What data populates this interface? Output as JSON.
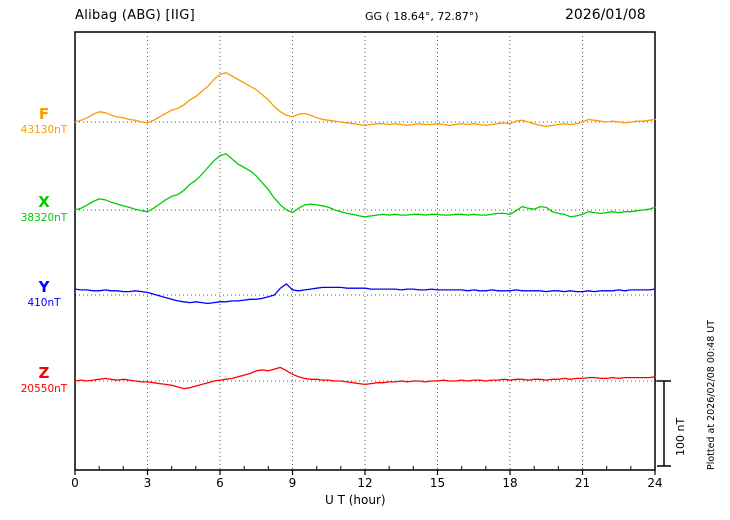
{
  "header": {
    "station": "Alibag (ABG)  [IIG]",
    "gg": "GG ( 18.64°, 72.87°)",
    "date": "2026/01/08"
  },
  "axis": {
    "xlabel": "U T (hour)",
    "x_ticks": [
      0,
      3,
      6,
      9,
      12,
      15,
      18,
      21,
      24
    ]
  },
  "scale_bar": {
    "label": "100 nT",
    "nT": 100
  },
  "footer_note": "Plotted at 2026/02/08 00:48 UT",
  "chart_data": {
    "type": "line",
    "title": "Alibag (ABG) [IIG] magnetogram 2026/01/08",
    "xlabel": "U T (hour)",
    "xlim": [
      0,
      24
    ],
    "x_step_hours": 0.25,
    "grid": "dotted vertical every 3 h, dotted baseline per channel",
    "legend_position": "left channel labels",
    "series": [
      {
        "name": "F",
        "color": "#ff9900",
        "baseline_label": "43130nT",
        "baseline_nT": 43130,
        "offsets_nT": [
          0,
          2,
          5,
          9,
          12,
          11,
          8,
          6,
          5,
          3,
          2,
          0,
          -1,
          2,
          6,
          10,
          14,
          16,
          20,
          26,
          30,
          36,
          42,
          50,
          56,
          58,
          54,
          50,
          46,
          42,
          38,
          32,
          26,
          18,
          12,
          8,
          6,
          9,
          10,
          8,
          5,
          3,
          2,
          1,
          0,
          -1,
          -2,
          -3,
          -4,
          -3,
          -2,
          -2,
          -3,
          -2,
          -3,
          -4,
          -3,
          -2,
          -3,
          -3,
          -2,
          -3,
          -4,
          -3,
          -2,
          -3,
          -2,
          -3,
          -4,
          -3,
          -2,
          -1,
          -2,
          1,
          2,
          0,
          -2,
          -4,
          -5,
          -4,
          -3,
          -2,
          -3,
          -2,
          0,
          3,
          2,
          1,
          0,
          1,
          0,
          -1,
          0,
          1,
          1,
          2,
          3
        ]
      },
      {
        "name": "X",
        "color": "#00cc00",
        "baseline_label": "38320nT",
        "baseline_nT": 38320,
        "offsets_nT": [
          0,
          2,
          6,
          10,
          13,
          12,
          9,
          7,
          5,
          3,
          1,
          -1,
          -2,
          2,
          7,
          12,
          16,
          18,
          23,
          30,
          35,
          42,
          50,
          58,
          64,
          66,
          60,
          54,
          50,
          46,
          40,
          32,
          24,
          14,
          6,
          0,
          -3,
          2,
          6,
          7,
          6,
          5,
          3,
          0,
          -2,
          -4,
          -5,
          -7,
          -8,
          -7,
          -6,
          -5,
          -6,
          -5,
          -6,
          -6,
          -5,
          -5,
          -6,
          -5,
          -5,
          -6,
          -6,
          -5,
          -5,
          -6,
          -5,
          -6,
          -6,
          -5,
          -4,
          -4,
          -5,
          -1,
          4,
          2,
          1,
          4,
          3,
          -2,
          -4,
          -5,
          -8,
          -7,
          -5,
          -2,
          -3,
          -4,
          -3,
          -2,
          -3,
          -2,
          -2,
          -1,
          0,
          1,
          3
        ]
      },
      {
        "name": "Y",
        "color": "#0000ff",
        "baseline_label": "410nT",
        "baseline_nT": 410,
        "offsets_nT": [
          7,
          6,
          6,
          5,
          5,
          6,
          5,
          5,
          4,
          4,
          5,
          4,
          3,
          1,
          -1,
          -3,
          -5,
          -7,
          -8,
          -9,
          -8,
          -9,
          -10,
          -9,
          -8,
          -8,
          -7,
          -7,
          -6,
          -5,
          -5,
          -4,
          -2,
          0,
          8,
          13,
          6,
          5,
          6,
          7,
          8,
          9,
          9,
          9,
          9,
          8,
          8,
          8,
          8,
          7,
          7,
          7,
          7,
          7,
          6,
          7,
          7,
          6,
          6,
          7,
          6,
          6,
          6,
          6,
          6,
          5,
          6,
          5,
          5,
          6,
          5,
          5,
          5,
          6,
          5,
          5,
          5,
          5,
          4,
          5,
          5,
          4,
          5,
          4,
          4,
          5,
          4,
          5,
          5,
          5,
          6,
          5,
          6,
          6,
          6,
          6,
          7
        ]
      },
      {
        "name": "Z",
        "color": "#ff0000",
        "baseline_label": "20550nT",
        "baseline_nT": 20550,
        "offsets_nT": [
          0,
          1,
          0,
          1,
          2,
          3,
          2,
          1,
          2,
          1,
          0,
          -1,
          -1,
          -2,
          -3,
          -4,
          -5,
          -7,
          -9,
          -8,
          -6,
          -4,
          -2,
          0,
          1,
          2,
          3,
          5,
          7,
          9,
          12,
          13,
          12,
          14,
          16,
          12,
          8,
          5,
          3,
          2,
          2,
          1,
          1,
          0,
          0,
          -1,
          -2,
          -3,
          -4,
          -3,
          -2,
          -2,
          -1,
          -1,
          0,
          -1,
          0,
          0,
          -1,
          0,
          0,
          1,
          0,
          0,
          1,
          0,
          1,
          1,
          0,
          1,
          1,
          2,
          1,
          2,
          2,
          1,
          2,
          2,
          1,
          2,
          2,
          3,
          2,
          3,
          3,
          4,
          4,
          3,
          3,
          4,
          3,
          4,
          4,
          4,
          4,
          4,
          5
        ]
      }
    ]
  }
}
